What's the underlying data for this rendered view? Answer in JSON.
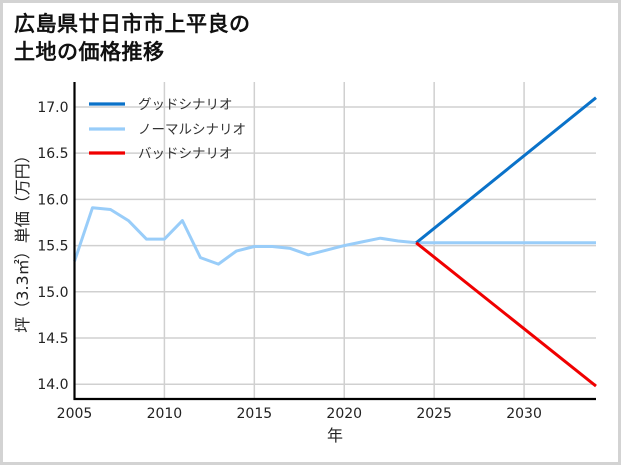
{
  "title": "広島県廿日市市上平良の\n土地の価格推移",
  "colors": {
    "good": "#0a72c9",
    "normal": "#99cdf9",
    "bad": "#f00000",
    "grid": "#d0d0d0",
    "axis": "#000000",
    "border": "#d3d3d3"
  },
  "chart_data": {
    "type": "line",
    "title": "広島県廿日市市上平良の土地の価格推移",
    "xlabel": "年",
    "ylabel": "坪（3.3㎡）単価（万円）",
    "xlim": [
      2005,
      2034
    ],
    "ylim": [
      13.84,
      17.27
    ],
    "xticks": [
      2005,
      2010,
      2015,
      2020,
      2025,
      2030
    ],
    "yticks": [
      14.0,
      14.5,
      15.0,
      15.5,
      16.0,
      16.5,
      17.0
    ],
    "ytick_labels": [
      "14.0",
      "14.5",
      "15.0",
      "15.5",
      "16.0",
      "16.5",
      "17.0"
    ],
    "grid": true,
    "legend_position": "upper left",
    "series": [
      {
        "name": "グッドシナリオ",
        "color": "#0a72c9",
        "x": [
          2024,
          2034
        ],
        "y": [
          15.53,
          17.1
        ]
      },
      {
        "name": "ノーマルシナリオ",
        "color": "#99cdf9",
        "x": [
          2005,
          2006,
          2007,
          2008,
          2009,
          2010,
          2011,
          2012,
          2013,
          2014,
          2015,
          2016,
          2017,
          2018,
          2019,
          2020,
          2021,
          2022,
          2023,
          2024,
          2034
        ],
        "y": [
          15.33,
          15.91,
          15.89,
          15.77,
          15.57,
          15.57,
          15.77,
          15.37,
          15.3,
          15.44,
          15.49,
          15.49,
          15.47,
          15.4,
          15.45,
          15.5,
          15.54,
          15.58,
          15.55,
          15.53,
          15.53
        ]
      },
      {
        "name": "バッドシナリオ",
        "color": "#f00000",
        "x": [
          2024,
          2034
        ],
        "y": [
          15.53,
          13.98
        ]
      }
    ]
  }
}
